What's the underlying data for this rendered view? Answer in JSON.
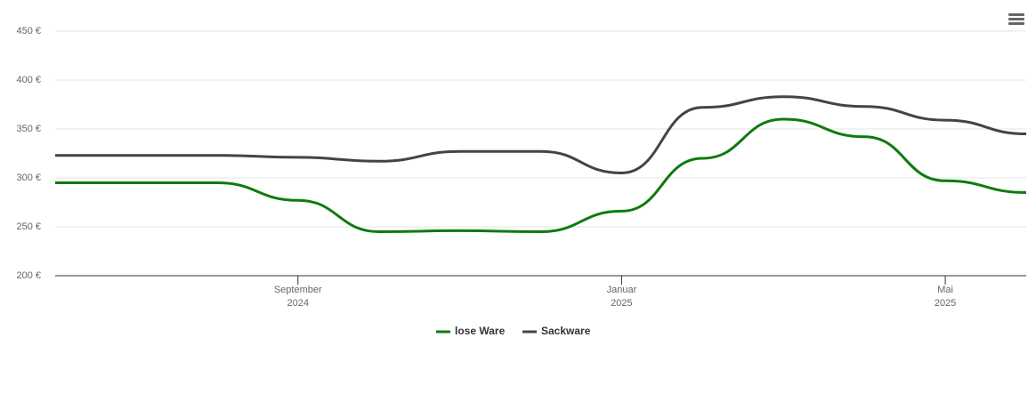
{
  "chart_data": {
    "type": "line",
    "x": [
      "2024-06",
      "2024-07",
      "2024-08",
      "2024-09",
      "2024-10",
      "2024-11",
      "2024-12",
      "2025-01",
      "2025-02",
      "2025-03",
      "2025-04",
      "2025-05",
      "2025-06"
    ],
    "series": [
      {
        "name": "lose Ware",
        "color": "#0f7a0f",
        "values": [
          295,
          295,
          295,
          277,
          245,
          246,
          245,
          266,
          320,
          360,
          342,
          297,
          285
        ]
      },
      {
        "name": "Sackware",
        "color": "#444444",
        "values": [
          323,
          323,
          323,
          321,
          317,
          327,
          327,
          305,
          372,
          383,
          373,
          359,
          345
        ]
      }
    ],
    "xlim": [
      "2024-06",
      "2025-06"
    ],
    "xticks": [
      {
        "value": "2024-09",
        "label": "September",
        "sublabel": "2024"
      },
      {
        "value": "2025-01",
        "label": "Januar",
        "sublabel": "2025"
      },
      {
        "value": "2025-05",
        "label": "Mai",
        "sublabel": "2025"
      }
    ],
    "ylim": [
      200,
      450
    ],
    "yticks": [
      {
        "value": 200,
        "label": "200 €"
      },
      {
        "value": 250,
        "label": "250 €"
      },
      {
        "value": 300,
        "label": "300 €"
      },
      {
        "value": 350,
        "label": "350 €"
      },
      {
        "value": 400,
        "label": "400 €"
      },
      {
        "value": 450,
        "label": "450 €"
      }
    ],
    "grid": true,
    "legend": "bottom"
  }
}
